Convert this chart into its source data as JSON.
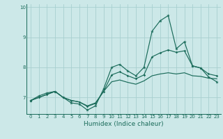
{
  "xlabel": "Humidex (Indice chaleur)",
  "bg_color": "#cce8e8",
  "grid_color": "#a8d0d0",
  "line_color": "#1a6b5a",
  "x": [
    0,
    1,
    2,
    3,
    4,
    5,
    6,
    7,
    8,
    9,
    10,
    11,
    12,
    13,
    14,
    15,
    16,
    17,
    18,
    19,
    20,
    21,
    22,
    23
  ],
  "y_main": [
    6.9,
    7.05,
    7.15,
    7.2,
    7.0,
    6.82,
    6.78,
    6.58,
    6.72,
    7.28,
    8.0,
    8.1,
    7.88,
    7.72,
    8.0,
    9.2,
    9.55,
    9.72,
    8.62,
    8.85,
    8.05,
    7.98,
    7.68,
    7.52
  ],
  "y_mid": [
    6.9,
    7.0,
    7.1,
    7.2,
    7.0,
    6.9,
    6.85,
    6.7,
    6.8,
    7.2,
    7.75,
    7.85,
    7.72,
    7.62,
    7.75,
    8.35,
    8.48,
    8.58,
    8.5,
    8.55,
    8.05,
    7.98,
    7.78,
    7.72
  ],
  "y_low": [
    6.9,
    7.0,
    7.1,
    7.2,
    7.0,
    6.9,
    6.85,
    6.72,
    6.82,
    7.2,
    7.52,
    7.58,
    7.5,
    7.44,
    7.55,
    7.72,
    7.78,
    7.82,
    7.78,
    7.82,
    7.72,
    7.7,
    7.64,
    7.62
  ],
  "ylim": [
    6.45,
    10.1
  ],
  "yticks": [
    7,
    8,
    9,
    10
  ],
  "xlim": [
    -0.5,
    23.5
  ],
  "xticks": [
    0,
    1,
    2,
    3,
    4,
    5,
    6,
    7,
    8,
    9,
    10,
    11,
    12,
    13,
    14,
    15,
    16,
    17,
    18,
    19,
    20,
    21,
    22,
    23
  ]
}
